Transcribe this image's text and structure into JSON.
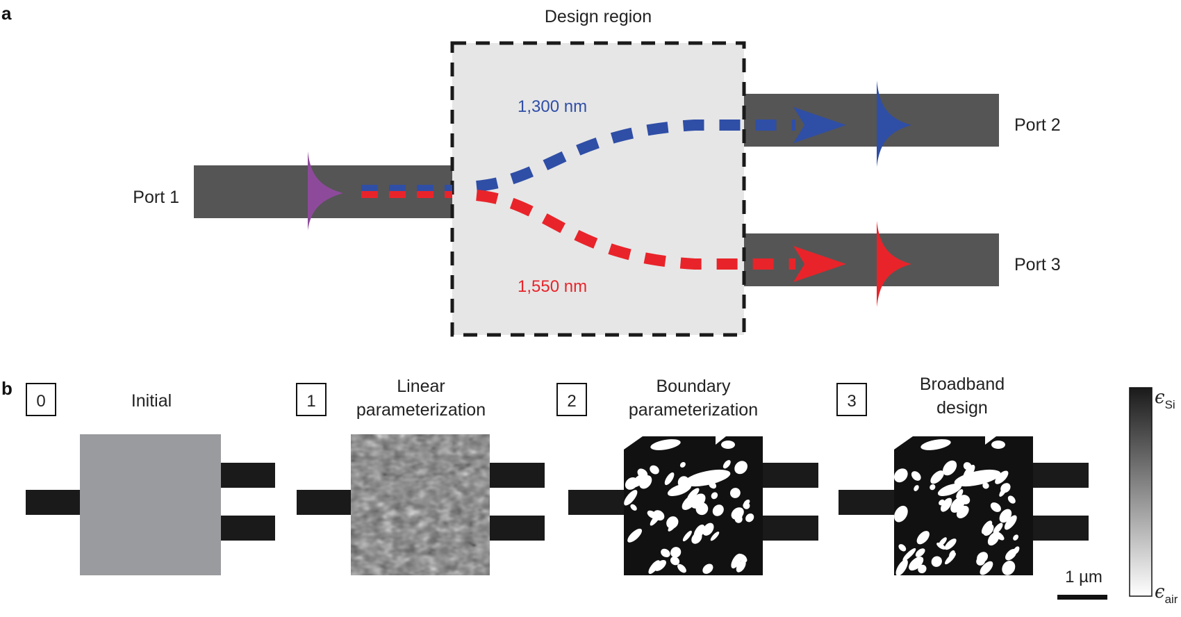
{
  "panel_a": {
    "letter": "a",
    "design_region_label": "Design region",
    "ports": {
      "port1": "Port 1",
      "port2": "Port 2",
      "port3": "Port 3"
    },
    "wavelengths": [
      {
        "label": "1,300 nm",
        "color": "#2f4ea6"
      },
      {
        "label": "1,550 nm",
        "color": "#e8242a"
      }
    ],
    "input_color": "#8d4a9b",
    "waveguide_color": "#555555",
    "design_region_fill": "#e6e6e6"
  },
  "panel_b": {
    "letter": "b",
    "steps": [
      {
        "number": "0",
        "title_lines": [
          "Initial"
        ]
      },
      {
        "number": "1",
        "title_lines": [
          "Linear",
          "parameterization"
        ]
      },
      {
        "number": "2",
        "title_lines": [
          "Boundary",
          "parameterization"
        ]
      },
      {
        "number": "3",
        "title_lines": [
          "Broadband",
          "design"
        ]
      }
    ],
    "scale_bar_label": "1 µm",
    "colorbar": {
      "top_symbol": "ϵ",
      "top_sub": "Si",
      "bottom_symbol": "ϵ",
      "bottom_sub": "air"
    }
  }
}
